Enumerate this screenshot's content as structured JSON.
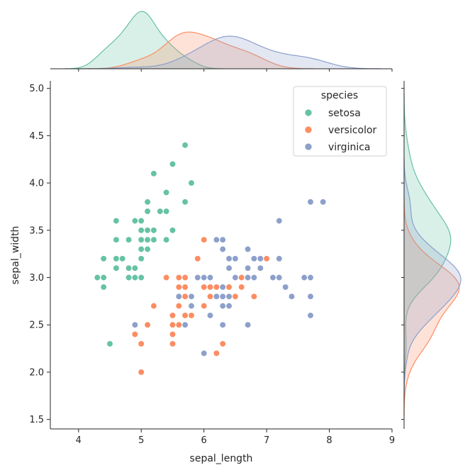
{
  "chart_data": {
    "type": "scatter",
    "title": "",
    "xlabel": "sepal_length",
    "ylabel": "sepal_width",
    "xlim": [
      3.55,
      9.0
    ],
    "ylim": [
      1.4,
      5.08
    ],
    "x_ticks": [
      4,
      5,
      6,
      7,
      8,
      9
    ],
    "y_ticks": [
      1.5,
      2.0,
      2.5,
      3.0,
      3.5,
      4.0,
      4.5,
      5.0
    ],
    "x_tick_labels": [
      "4",
      "5",
      "6",
      "7",
      "8",
      "9"
    ],
    "y_tick_labels": [
      "1.5",
      "2.0",
      "2.5",
      "3.0",
      "3.5",
      "4.0",
      "4.5",
      "5.0"
    ],
    "grid": false,
    "legend": {
      "title": "species",
      "position": "top-right"
    },
    "series": [
      {
        "name": "setosa",
        "color": "#66c2a5",
        "points": [
          [
            5.1,
            3.5
          ],
          [
            4.9,
            3.0
          ],
          [
            4.7,
            3.2
          ],
          [
            4.6,
            3.1
          ],
          [
            5.0,
            3.6
          ],
          [
            5.4,
            3.9
          ],
          [
            4.6,
            3.4
          ],
          [
            5.0,
            3.4
          ],
          [
            4.4,
            2.9
          ],
          [
            4.9,
            3.1
          ],
          [
            5.4,
            3.7
          ],
          [
            4.8,
            3.4
          ],
          [
            4.8,
            3.0
          ],
          [
            4.3,
            3.0
          ],
          [
            5.8,
            4.0
          ],
          [
            5.7,
            4.4
          ],
          [
            5.4,
            3.9
          ],
          [
            5.1,
            3.5
          ],
          [
            5.7,
            3.8
          ],
          [
            5.1,
            3.8
          ],
          [
            5.4,
            3.4
          ],
          [
            5.1,
            3.7
          ],
          [
            4.6,
            3.6
          ],
          [
            5.1,
            3.3
          ],
          [
            4.8,
            3.4
          ],
          [
            5.0,
            3.0
          ],
          [
            5.0,
            3.4
          ],
          [
            5.2,
            3.5
          ],
          [
            5.2,
            3.4
          ],
          [
            4.7,
            3.2
          ],
          [
            4.8,
            3.1
          ],
          [
            5.4,
            3.4
          ],
          [
            5.2,
            4.1
          ],
          [
            5.5,
            4.2
          ],
          [
            4.9,
            3.1
          ],
          [
            5.0,
            3.2
          ],
          [
            5.5,
            3.5
          ],
          [
            4.9,
            3.6
          ],
          [
            4.4,
            3.0
          ],
          [
            5.1,
            3.4
          ],
          [
            5.0,
            3.5
          ],
          [
            4.5,
            2.3
          ],
          [
            4.4,
            3.2
          ],
          [
            5.0,
            3.5
          ],
          [
            5.1,
            3.8
          ],
          [
            4.8,
            3.0
          ],
          [
            5.1,
            3.8
          ],
          [
            4.6,
            3.2
          ],
          [
            5.3,
            3.7
          ],
          [
            5.0,
            3.3
          ]
        ]
      },
      {
        "name": "versicolor",
        "color": "#fc8d62",
        "points": [
          [
            7.0,
            3.2
          ],
          [
            6.4,
            3.2
          ],
          [
            6.9,
            3.1
          ],
          [
            5.5,
            2.3
          ],
          [
            6.5,
            2.8
          ],
          [
            5.7,
            2.8
          ],
          [
            6.3,
            3.3
          ],
          [
            4.9,
            2.4
          ],
          [
            6.6,
            2.9
          ],
          [
            5.2,
            2.7
          ],
          [
            5.0,
            2.0
          ],
          [
            5.9,
            3.0
          ],
          [
            6.0,
            2.2
          ],
          [
            6.1,
            2.9
          ],
          [
            5.6,
            2.9
          ],
          [
            6.7,
            3.1
          ],
          [
            5.6,
            3.0
          ],
          [
            5.8,
            2.7
          ],
          [
            6.2,
            2.2
          ],
          [
            5.6,
            2.5
          ],
          [
            5.9,
            3.2
          ],
          [
            6.1,
            2.8
          ],
          [
            6.3,
            2.5
          ],
          [
            6.1,
            2.8
          ],
          [
            6.4,
            2.9
          ],
          [
            6.6,
            3.0
          ],
          [
            6.8,
            2.8
          ],
          [
            6.7,
            3.0
          ],
          [
            6.0,
            2.9
          ],
          [
            5.7,
            2.6
          ],
          [
            5.5,
            2.4
          ],
          [
            5.5,
            2.4
          ],
          [
            5.8,
            2.7
          ],
          [
            6.0,
            2.7
          ],
          [
            5.4,
            3.0
          ],
          [
            6.0,
            3.4
          ],
          [
            6.7,
            3.1
          ],
          [
            6.3,
            2.3
          ],
          [
            5.6,
            3.0
          ],
          [
            5.5,
            2.5
          ],
          [
            5.5,
            2.6
          ],
          [
            6.1,
            3.0
          ],
          [
            5.8,
            2.6
          ],
          [
            5.0,
            2.3
          ],
          [
            5.6,
            2.7
          ],
          [
            5.7,
            3.0
          ],
          [
            5.7,
            2.9
          ],
          [
            6.2,
            2.9
          ],
          [
            5.1,
            2.5
          ],
          [
            5.7,
            2.8
          ]
        ]
      },
      {
        "name": "virginica",
        "color": "#8da0cb",
        "points": [
          [
            6.3,
            3.3
          ],
          [
            5.8,
            2.7
          ],
          [
            7.1,
            3.0
          ],
          [
            6.3,
            2.9
          ],
          [
            6.5,
            3.0
          ],
          [
            7.6,
            3.0
          ],
          [
            4.9,
            2.5
          ],
          [
            7.3,
            2.9
          ],
          [
            6.7,
            2.5
          ],
          [
            7.2,
            3.6
          ],
          [
            6.5,
            3.2
          ],
          [
            6.4,
            2.7
          ],
          [
            6.8,
            3.0
          ],
          [
            5.7,
            2.5
          ],
          [
            5.8,
            2.8
          ],
          [
            6.4,
            3.2
          ],
          [
            6.5,
            3.0
          ],
          [
            7.7,
            3.8
          ],
          [
            7.7,
            2.6
          ],
          [
            6.0,
            2.2
          ],
          [
            6.9,
            3.2
          ],
          [
            5.6,
            2.8
          ],
          [
            7.7,
            2.8
          ],
          [
            6.3,
            2.7
          ],
          [
            6.7,
            3.3
          ],
          [
            7.2,
            3.2
          ],
          [
            6.2,
            2.8
          ],
          [
            6.1,
            3.0
          ],
          [
            6.4,
            2.8
          ],
          [
            7.2,
            3.0
          ],
          [
            7.4,
            2.8
          ],
          [
            7.9,
            3.8
          ],
          [
            6.4,
            2.8
          ],
          [
            6.3,
            2.8
          ],
          [
            6.1,
            2.6
          ],
          [
            7.7,
            3.0
          ],
          [
            6.3,
            3.4
          ],
          [
            6.4,
            3.1
          ],
          [
            6.0,
            3.0
          ],
          [
            6.9,
            3.1
          ],
          [
            6.7,
            3.1
          ],
          [
            6.9,
            3.1
          ],
          [
            5.8,
            2.7
          ],
          [
            6.8,
            3.2
          ],
          [
            6.7,
            3.3
          ],
          [
            6.7,
            3.0
          ],
          [
            6.3,
            2.5
          ],
          [
            6.5,
            3.0
          ],
          [
            6.2,
            3.4
          ],
          [
            5.9,
            3.0
          ]
        ]
      }
    ]
  }
}
